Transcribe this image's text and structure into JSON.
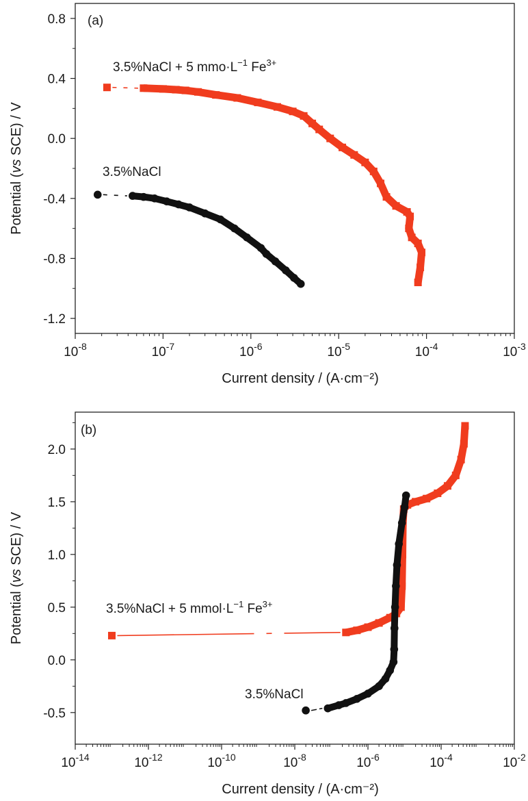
{
  "chart_data": [
    {
      "type": "scatter",
      "panel_label": "(a)",
      "title": "",
      "xlabel": "Current density / (A·cm⁻²)",
      "ylabel_parts": [
        "Potential (",
        "vs",
        " SCE) / V"
      ],
      "xscale": "log",
      "xlim": [
        1e-08,
        0.001
      ],
      "ylim": [
        -1.3,
        0.9
      ],
      "grid": false,
      "x_ticks": [
        {
          "value": 1e-08,
          "base": "10",
          "exp": "-8"
        },
        {
          "value": 1e-07,
          "base": "10",
          "exp": "-7"
        },
        {
          "value": 1e-06,
          "base": "10",
          "exp": "-6"
        },
        {
          "value": 1e-05,
          "base": "10",
          "exp": "-5"
        },
        {
          "value": 0.0001,
          "base": "10",
          "exp": "-4"
        },
        {
          "value": 0.001,
          "base": "10",
          "exp": "-3"
        }
      ],
      "y_ticks": [
        {
          "value": 0.8,
          "label": "0.8"
        },
        {
          "value": 0.4,
          "label": "0.4"
        },
        {
          "value": 0.0,
          "label": "0.0"
        },
        {
          "value": -0.4,
          "label": "-0.4"
        },
        {
          "value": -0.8,
          "label": "-0.8"
        },
        {
          "value": -1.2,
          "label": "-1.2"
        }
      ],
      "series": [
        {
          "name_parts": [
            "3.5%NaCl + 5 mmo·L",
            "−1",
            " Fe",
            "3+"
          ],
          "color": "#f03c1e",
          "marker": "square",
          "points": [
            [
              2.3e-08,
              0.34
            ],
            [
              6e-08,
              0.335
            ],
            [
              1e-07,
              0.33
            ],
            [
              1.4e-07,
              0.325
            ],
            [
              1.8e-07,
              0.32
            ],
            [
              2.5e-07,
              0.31
            ],
            [
              4e-07,
              0.29
            ],
            [
              7e-07,
              0.27
            ],
            [
              1.2e-06,
              0.24
            ],
            [
              2e-06,
              0.21
            ],
            [
              3e-06,
              0.18
            ],
            [
              4e-06,
              0.15
            ],
            [
              5e-06,
              0.1
            ],
            [
              6e-06,
              0.06
            ],
            [
              8e-06,
              0.0
            ],
            [
              1.1e-05,
              -0.06
            ],
            [
              1.5e-05,
              -0.11
            ],
            [
              2e-05,
              -0.16
            ],
            [
              2.5e-05,
              -0.22
            ],
            [
              3e-05,
              -0.3
            ],
            [
              3.5e-05,
              -0.39
            ],
            [
              4.5e-05,
              -0.45
            ],
            [
              6e-05,
              -0.49
            ],
            [
              6.5e-05,
              -0.52
            ],
            [
              6.3e-05,
              -0.6
            ],
            [
              6.8e-05,
              -0.66
            ],
            [
              8e-05,
              -0.7
            ],
            [
              8.8e-05,
              -0.76
            ],
            [
              8.5e-05,
              -0.86
            ],
            [
              8e-05,
              -0.96
            ]
          ]
        },
        {
          "name_parts": [
            "3.5%NaCl"
          ],
          "color": "#111111",
          "marker": "circle",
          "points": [
            [
              1.8e-08,
              -0.375
            ],
            [
              4.5e-08,
              -0.383
            ],
            [
              6e-08,
              -0.39
            ],
            [
              8e-08,
              -0.4
            ],
            [
              1.1e-07,
              -0.42
            ],
            [
              1.5e-07,
              -0.44
            ],
            [
              2e-07,
              -0.46
            ],
            [
              3e-07,
              -0.5
            ],
            [
              4.5e-07,
              -0.54
            ],
            [
              6.5e-07,
              -0.6
            ],
            [
              9e-07,
              -0.66
            ],
            [
              1.3e-06,
              -0.73
            ],
            [
              1.5e-06,
              -0.77
            ],
            [
              1.9e-06,
              -0.82
            ],
            [
              2.5e-06,
              -0.88
            ],
            [
              3.1e-06,
              -0.93
            ],
            [
              3.7e-06,
              -0.97
            ]
          ]
        }
      ]
    },
    {
      "type": "scatter",
      "panel_label": "(b)",
      "title": "",
      "xlabel": "Current density / (A·cm⁻²)",
      "ylabel_parts": [
        "Potential (",
        "vs",
        " SCE) / V"
      ],
      "xscale": "log",
      "xlim": [
        1e-14,
        0.01
      ],
      "ylim": [
        -0.8,
        2.35
      ],
      "grid": false,
      "x_ticks": [
        {
          "value": 1e-14,
          "base": "10",
          "exp": "-14"
        },
        {
          "value": 1e-12,
          "base": "10",
          "exp": "-12"
        },
        {
          "value": 1e-10,
          "base": "10",
          "exp": "-10"
        },
        {
          "value": 1e-08,
          "base": "10",
          "exp": "-8"
        },
        {
          "value": 1e-06,
          "base": "10",
          "exp": "-6"
        },
        {
          "value": 0.0001,
          "base": "10",
          "exp": "-4"
        },
        {
          "value": 0.01,
          "base": "10",
          "exp": "-2"
        }
      ],
      "y_ticks": [
        {
          "value": 2.0,
          "label": "2.0"
        },
        {
          "value": 1.5,
          "label": "1.5"
        },
        {
          "value": 1.0,
          "label": "1.0"
        },
        {
          "value": 0.5,
          "label": "0.5"
        },
        {
          "value": 0.0,
          "label": "0.0"
        },
        {
          "value": -0.5,
          "label": "-0.5"
        }
      ],
      "series": [
        {
          "name_parts": [
            "3.5%NaCl + 5 mmol·L",
            "−1",
            " Fe",
            "3+"
          ],
          "color": "#f03c1e",
          "marker": "square",
          "points": [
            [
              1e-13,
              0.23
            ],
            [
              2.5e-07,
              0.26
            ],
            [
              5e-07,
              0.28
            ],
            [
              1e-06,
              0.31
            ],
            [
              2e-06,
              0.35
            ],
            [
              4e-06,
              0.4
            ],
            [
              6e-06,
              0.44
            ],
            [
              8e-06,
              0.5
            ],
            [
              8.5e-06,
              0.7
            ],
            [
              8.8e-06,
              1.0
            ],
            [
              9e-06,
              1.3
            ],
            [
              9.5e-06,
              1.43
            ],
            [
              1.2e-05,
              1.47
            ],
            [
              2e-05,
              1.5
            ],
            [
              4e-05,
              1.53
            ],
            [
              8e-05,
              1.58
            ],
            [
              0.00015,
              1.65
            ],
            [
              0.00025,
              1.75
            ],
            [
              0.00035,
              1.9
            ],
            [
              0.00042,
              2.05
            ],
            [
              0.00045,
              2.22
            ]
          ]
        },
        {
          "name_parts": [
            "3.5%NaCl"
          ],
          "color": "#111111",
          "marker": "circle",
          "points": [
            [
              2e-08,
              -0.48
            ],
            [
              8e-08,
              -0.46
            ],
            [
              1.6e-07,
              -0.43
            ],
            [
              2.5e-07,
              -0.41
            ],
            [
              5e-07,
              -0.37
            ],
            [
              1e-06,
              -0.32
            ],
            [
              2e-06,
              -0.25
            ],
            [
              3e-06,
              -0.18
            ],
            [
              4e-06,
              -0.1
            ],
            [
              5e-06,
              -0.02
            ],
            [
              5.2e-06,
              0.1
            ],
            [
              5.3e-06,
              0.3
            ],
            [
              5.5e-06,
              0.5
            ],
            [
              5.8e-06,
              0.7
            ],
            [
              6.2e-06,
              0.9
            ],
            [
              7e-06,
              1.1
            ],
            [
              8.5e-06,
              1.3
            ],
            [
              1e-05,
              1.45
            ],
            [
              1.1e-05,
              1.56
            ]
          ]
        }
      ]
    }
  ]
}
